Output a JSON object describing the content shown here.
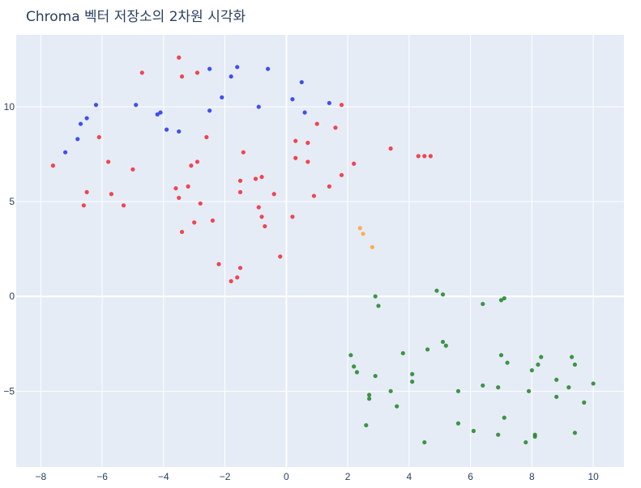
{
  "chart_data": {
    "type": "scatter",
    "title": "Chroma 벡터 저장소의 2차원 시각화",
    "xlabel": "",
    "ylabel": "",
    "xlim": [
      -8.8,
      11.0
    ],
    "ylim": [
      -9.0,
      13.8
    ],
    "xticks": [
      -8,
      -6,
      -4,
      -2,
      0,
      2,
      4,
      6,
      8,
      10
    ],
    "yticks": [
      -5,
      0,
      5,
      10
    ],
    "grid": true,
    "legend": "none",
    "background": "#e5ecf6",
    "series": [
      {
        "color": "#2e3ef0",
        "points": [
          [
            -7.2,
            7.6
          ],
          [
            -6.8,
            8.3
          ],
          [
            -6.7,
            9.1
          ],
          [
            -6.5,
            9.4
          ],
          [
            -6.2,
            10.1
          ],
          [
            -4.9,
            10.1
          ],
          [
            -4.2,
            9.6
          ],
          [
            -4.1,
            9.7
          ],
          [
            -3.9,
            8.8
          ],
          [
            -3.5,
            8.7
          ],
          [
            -2.5,
            9.8
          ],
          [
            -2.5,
            12.0
          ],
          [
            -2.1,
            10.5
          ],
          [
            -1.8,
            11.6
          ],
          [
            -1.6,
            12.1
          ],
          [
            -0.9,
            10.0
          ],
          [
            -0.6,
            12.0
          ],
          [
            0.2,
            10.4
          ],
          [
            0.5,
            11.3
          ],
          [
            0.6,
            9.7
          ],
          [
            1.4,
            10.2
          ]
        ]
      },
      {
        "color": "#ef3340",
        "points": [
          [
            -7.6,
            6.9
          ],
          [
            -6.6,
            4.8
          ],
          [
            -6.5,
            5.5
          ],
          [
            -6.1,
            8.4
          ],
          [
            -5.8,
            7.1
          ],
          [
            -5.7,
            5.4
          ],
          [
            -5.3,
            4.8
          ],
          [
            -5.0,
            6.7
          ],
          [
            -4.7,
            11.8
          ],
          [
            -3.6,
            5.7
          ],
          [
            -3.5,
            5.2
          ],
          [
            -3.5,
            12.6
          ],
          [
            -3.4,
            11.6
          ],
          [
            -3.4,
            3.4
          ],
          [
            -3.2,
            5.8
          ],
          [
            -3.1,
            6.9
          ],
          [
            -3.0,
            3.9
          ],
          [
            -2.9,
            11.8
          ],
          [
            -2.9,
            7.1
          ],
          [
            -2.8,
            4.9
          ],
          [
            -2.6,
            8.4
          ],
          [
            -2.4,
            4.0
          ],
          [
            -2.2,
            1.7
          ],
          [
            -1.8,
            0.8
          ],
          [
            -1.6,
            1.0
          ],
          [
            -1.5,
            1.5
          ],
          [
            -1.5,
            6.1
          ],
          [
            -1.4,
            7.6
          ],
          [
            -1.5,
            5.5
          ],
          [
            -1.0,
            6.2
          ],
          [
            -0.9,
            4.7
          ],
          [
            -0.8,
            4.2
          ],
          [
            -0.8,
            6.3
          ],
          [
            -0.7,
            3.7
          ],
          [
            -0.4,
            5.4
          ],
          [
            -0.2,
            2.1
          ],
          [
            0.2,
            4.2
          ],
          [
            0.3,
            8.2
          ],
          [
            0.3,
            7.3
          ],
          [
            0.7,
            8.1
          ],
          [
            0.7,
            7.1
          ],
          [
            0.9,
            5.3
          ],
          [
            1.0,
            9.1
          ],
          [
            1.4,
            5.8
          ],
          [
            1.6,
            8.9
          ],
          [
            1.8,
            10.1
          ],
          [
            1.8,
            6.4
          ],
          [
            2.2,
            7.0
          ],
          [
            3.4,
            7.8
          ],
          [
            4.3,
            7.4
          ],
          [
            4.5,
            7.4
          ],
          [
            4.7,
            7.4
          ]
        ]
      },
      {
        "color": "#ffa545",
        "points": [
          [
            2.4,
            3.6
          ],
          [
            2.5,
            3.3
          ],
          [
            2.8,
            2.6
          ]
        ]
      },
      {
        "color": "#2a8a32",
        "points": [
          [
            2.1,
            -3.1
          ],
          [
            2.2,
            -3.7
          ],
          [
            2.3,
            -4.0
          ],
          [
            2.6,
            -6.8
          ],
          [
            2.7,
            -5.2
          ],
          [
            2.7,
            -5.4
          ],
          [
            2.9,
            -4.2
          ],
          [
            2.9,
            0.0
          ],
          [
            3.0,
            -0.5
          ],
          [
            3.4,
            -5.0
          ],
          [
            3.6,
            -5.8
          ],
          [
            3.8,
            -3.0
          ],
          [
            4.1,
            -4.1
          ],
          [
            4.1,
            -4.5
          ],
          [
            4.5,
            -7.7
          ],
          [
            4.6,
            -2.8
          ],
          [
            4.9,
            0.3
          ],
          [
            5.1,
            0.1
          ],
          [
            5.1,
            -2.4
          ],
          [
            5.2,
            -2.6
          ],
          [
            5.6,
            -6.7
          ],
          [
            5.6,
            -5.0
          ],
          [
            6.1,
            -7.1
          ],
          [
            6.4,
            -4.7
          ],
          [
            6.4,
            -0.4
          ],
          [
            6.9,
            -4.8
          ],
          [
            6.9,
            -7.3
          ],
          [
            7.0,
            -0.2
          ],
          [
            7.0,
            -3.1
          ],
          [
            7.1,
            -0.1
          ],
          [
            7.1,
            -6.4
          ],
          [
            7.2,
            -3.5
          ],
          [
            7.8,
            -7.7
          ],
          [
            7.9,
            -5.0
          ],
          [
            8.0,
            -3.9
          ],
          [
            8.1,
            -7.3
          ],
          [
            8.1,
            -7.4
          ],
          [
            8.2,
            -3.6
          ],
          [
            8.3,
            -3.2
          ],
          [
            8.8,
            -4.4
          ],
          [
            8.8,
            -5.3
          ],
          [
            9.2,
            -4.8
          ],
          [
            9.3,
            -3.2
          ],
          [
            9.4,
            -3.6
          ],
          [
            9.4,
            -7.2
          ],
          [
            9.7,
            -5.6
          ],
          [
            10.0,
            -4.6
          ]
        ]
      }
    ]
  }
}
